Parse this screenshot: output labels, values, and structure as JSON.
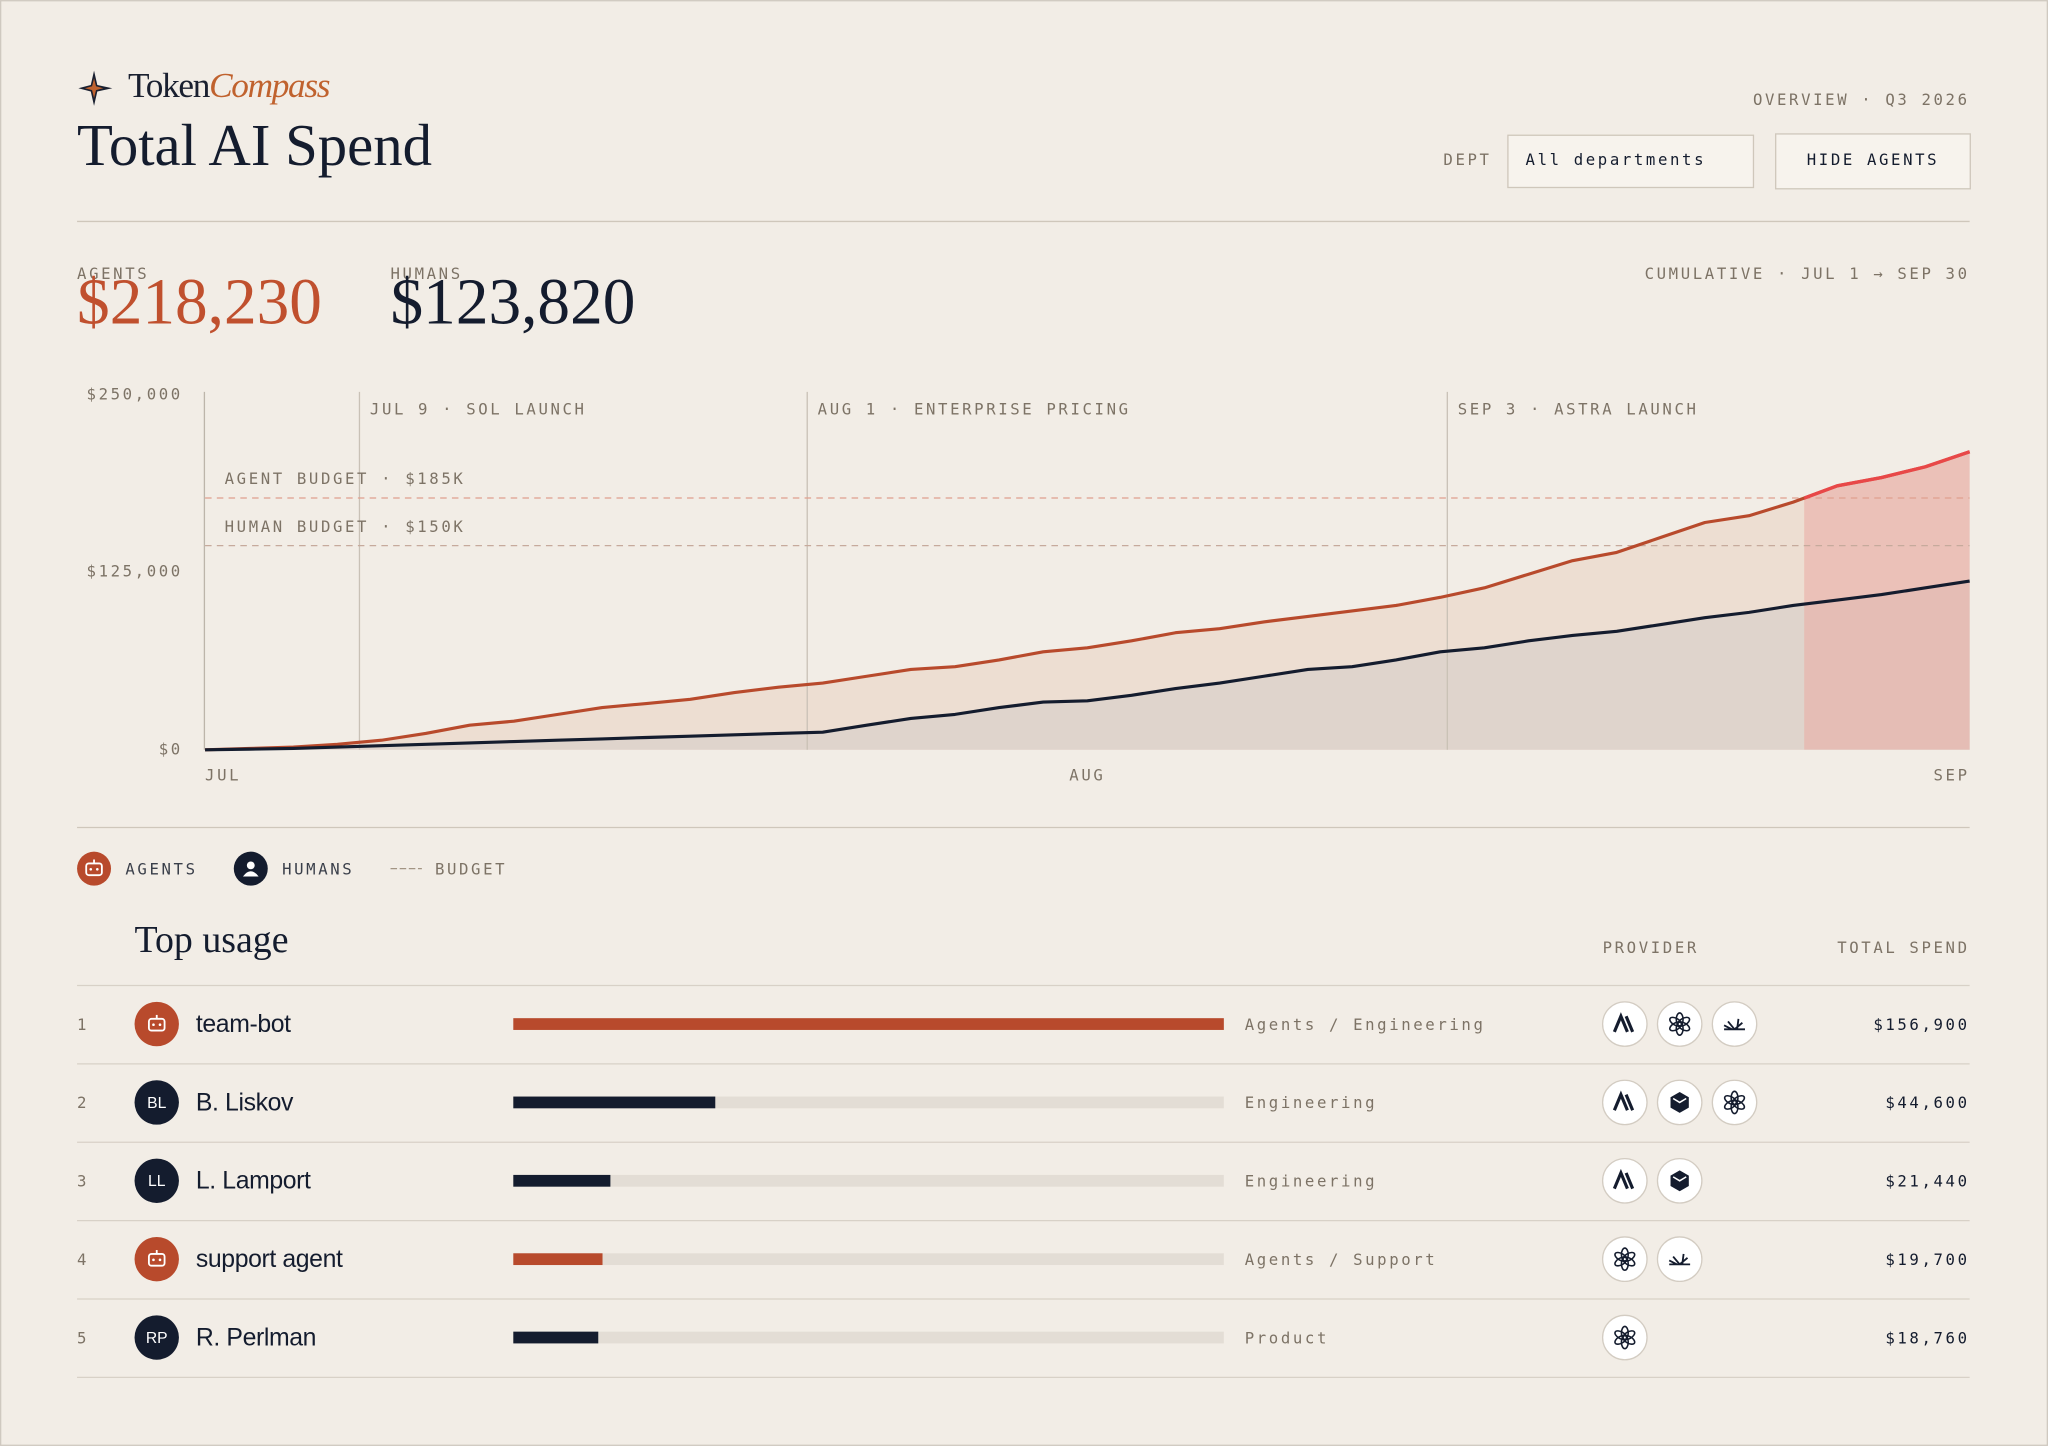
{
  "header": {
    "brand_first": "Token",
    "brand_second": "Compass",
    "title": "Total AI Spend",
    "overview": "OVERVIEW · Q3 2026",
    "dept_label": "DEPT",
    "dept_value": "All departments",
    "toggle": "HIDE AGENTS"
  },
  "totals": {
    "agents_label": "AGENTS",
    "agents_value": "$218,230",
    "humans_label": "HUMANS",
    "humans_value": "$123,820",
    "range": "CUMULATIVE · JUL 1 → SEP 30"
  },
  "chart_data": {
    "type": "line",
    "categories": [
      "JUL",
      null,
      null,
      null,
      null,
      null,
      null,
      null,
      null,
      null,
      null,
      null,
      null,
      null,
      null,
      null,
      null,
      null,
      null,
      null,
      "AUG",
      null,
      null,
      null,
      null,
      null,
      null,
      null,
      null,
      null,
      null,
      null,
      null,
      null,
      null,
      null,
      null,
      null,
      null,
      null,
      "SEP"
    ],
    "series": [
      {
        "name": "AGENTS",
        "color": "#b84a2c",
        "fill": "#ecdbcf",
        "values": [
          0,
          1000,
          2000,
          4000,
          7000,
          12000,
          18000,
          21000,
          26000,
          31000,
          34000,
          37000,
          42000,
          46000,
          49000,
          54000,
          59000,
          61000,
          66000,
          72000,
          75000,
          80000,
          86000,
          89000,
          94000,
          98000,
          102000,
          106000,
          112000,
          119000,
          129000,
          139000,
          145000,
          156000,
          167000,
          172000,
          182000,
          194000,
          200000,
          208000,
          219000
        ]
      },
      {
        "name": "HUMANS",
        "color": "#141c2e",
        "fill": "#ddd3cb",
        "values": [
          0,
          500,
          1000,
          2000,
          3000,
          4000,
          5000,
          6000,
          7000,
          8000,
          9000,
          10000,
          11000,
          12000,
          13000,
          18000,
          23000,
          26000,
          31000,
          35000,
          36000,
          40000,
          45000,
          49000,
          54000,
          59000,
          61000,
          66000,
          72000,
          75000,
          80000,
          84000,
          87000,
          92000,
          97000,
          101000,
          106000,
          110000,
          114000,
          119000,
          124000
        ]
      }
    ],
    "ylim": [
      0,
      250000
    ],
    "yticks": [
      {
        "value": 0,
        "label": "$0"
      },
      {
        "value": 125000,
        "label": "$125,000"
      },
      {
        "value": 250000,
        "label": "$250,000"
      }
    ],
    "budgets": [
      {
        "label": "AGENT BUDGET · $185K",
        "value": 185000,
        "color": "#e0a08e",
        "over_color": "#e84848",
        "over_fill": "#e9a9a2"
      },
      {
        "label": "HUMAN BUDGET · $150K",
        "value": 150000,
        "color": "#c6aa9c"
      }
    ],
    "annotations": [
      {
        "label": "JUL 9 · SOL LAUNCH"
      },
      {
        "label": "AUG 1 · ENTERPRISE PRICING"
      },
      {
        "label": "SEP 3 · ASTRA LAUNCH"
      }
    ],
    "legend_budget": "BUDGET",
    "grid": false
  },
  "table": {
    "title": "Top usage",
    "columns": [
      "PROVIDER",
      "TOTAL SPEND"
    ],
    "rows": [
      {
        "rank": 1,
        "name": "team-bot",
        "team": "Agents / Engineering",
        "spend": 156900,
        "spend_label": "$156,900",
        "color": "#b84a2c"
      },
      {
        "rank": 2,
        "initials": "BL",
        "name": "B. Liskov",
        "team": "Engineering",
        "spend": 44600,
        "spend_label": "$44,600",
        "color": "#141c2e"
      },
      {
        "rank": 3,
        "initials": "LL",
        "name": "L. Lamport",
        "team": "Engineering",
        "spend": 21440,
        "spend_label": "$21,440",
        "color": "#141c2e"
      },
      {
        "rank": 4,
        "name": "support agent",
        "team": "Agents / Support",
        "spend": 19700,
        "spend_label": "$19,700",
        "color": "#b84a2c"
      },
      {
        "rank": 5,
        "initials": "RP",
        "name": "R. Perlman",
        "team": "Product",
        "spend": 18760,
        "spend_label": "$18,760",
        "color": "#141c2e"
      }
    ]
  }
}
